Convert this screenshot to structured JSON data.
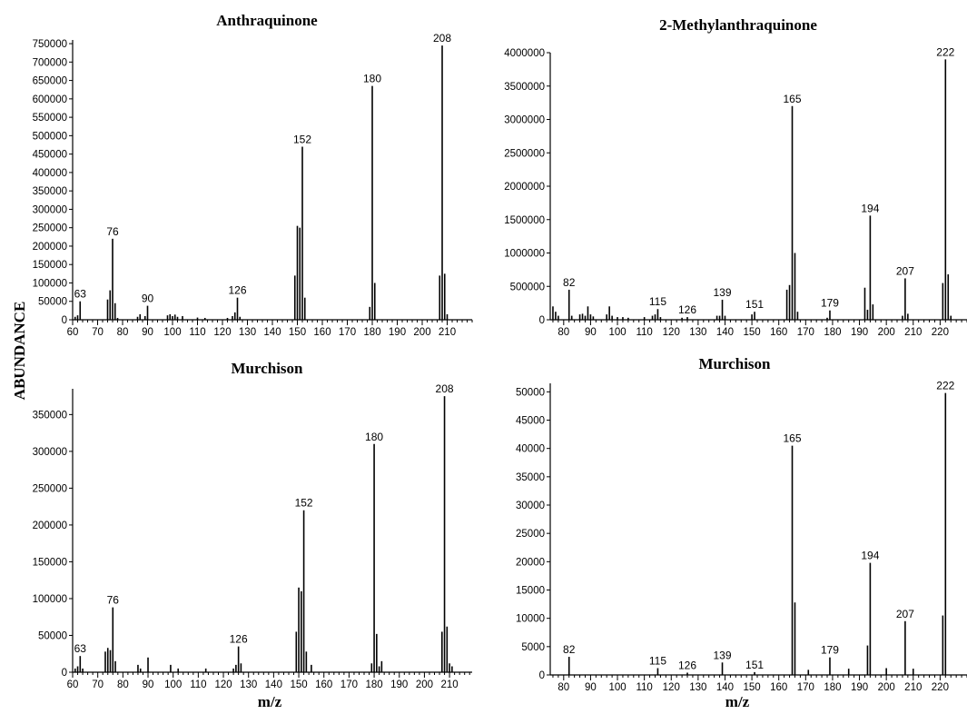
{
  "figure": {
    "ylabel": "ABUNDANCE",
    "xlabel": "m/z"
  },
  "chart_data": [
    {
      "type": "bar",
      "title": "Anthraquinone",
      "xlabel": "",
      "ylabel": "",
      "xlim": [
        60,
        220
      ],
      "ylim": [
        0,
        760000
      ],
      "xticks": [
        60,
        70,
        80,
        90,
        100,
        110,
        120,
        130,
        140,
        150,
        160,
        170,
        180,
        190,
        200,
        210
      ],
      "yticks": [
        0,
        50000,
        100000,
        150000,
        200000,
        250000,
        300000,
        350000,
        400000,
        450000,
        500000,
        550000,
        600000,
        650000,
        700000,
        750000
      ],
      "peaks": [
        {
          "mz": 61,
          "value": 8000
        },
        {
          "mz": 62,
          "value": 12000
        },
        {
          "mz": 63,
          "value": 50000,
          "label": "63"
        },
        {
          "mz": 74,
          "value": 55000
        },
        {
          "mz": 75,
          "value": 80000
        },
        {
          "mz": 76,
          "value": 220000,
          "label": "76"
        },
        {
          "mz": 77,
          "value": 45000
        },
        {
          "mz": 78,
          "value": 5000
        },
        {
          "mz": 86,
          "value": 8000
        },
        {
          "mz": 87,
          "value": 15000
        },
        {
          "mz": 89,
          "value": 10000
        },
        {
          "mz": 90,
          "value": 38000,
          "label": "90"
        },
        {
          "mz": 98,
          "value": 12000
        },
        {
          "mz": 99,
          "value": 15000
        },
        {
          "mz": 100,
          "value": 10000
        },
        {
          "mz": 101,
          "value": 14000
        },
        {
          "mz": 102,
          "value": 8000
        },
        {
          "mz": 104,
          "value": 10000
        },
        {
          "mz": 110,
          "value": 6000
        },
        {
          "mz": 113,
          "value": 5000
        },
        {
          "mz": 122,
          "value": 5000
        },
        {
          "mz": 124,
          "value": 10000
        },
        {
          "mz": 125,
          "value": 20000
        },
        {
          "mz": 126,
          "value": 60000,
          "label": "126"
        },
        {
          "mz": 127,
          "value": 8000
        },
        {
          "mz": 149,
          "value": 120000
        },
        {
          "mz": 150,
          "value": 255000
        },
        {
          "mz": 151,
          "value": 250000
        },
        {
          "mz": 152,
          "value": 470000,
          "label": "152"
        },
        {
          "mz": 153,
          "value": 60000
        },
        {
          "mz": 179,
          "value": 35000
        },
        {
          "mz": 180,
          "value": 635000,
          "label": "180"
        },
        {
          "mz": 181,
          "value": 100000
        },
        {
          "mz": 207,
          "value": 120000
        },
        {
          "mz": 208,
          "value": 745000,
          "label": "208"
        },
        {
          "mz": 209,
          "value": 125000
        },
        {
          "mz": 210,
          "value": 15000
        }
      ]
    },
    {
      "type": "bar",
      "title": "2-Methylanthraquinone",
      "xlabel": "",
      "ylabel": "",
      "xlim": [
        75,
        230
      ],
      "ylim": [
        0,
        4000000
      ],
      "xticks": [
        80,
        90,
        100,
        110,
        120,
        130,
        140,
        150,
        160,
        170,
        180,
        190,
        200,
        210,
        220
      ],
      "yticks": [
        0,
        500000,
        1000000,
        1500000,
        2000000,
        2500000,
        3000000,
        3500000,
        4000000
      ],
      "peaks": [
        {
          "mz": 76,
          "value": 200000
        },
        {
          "mz": 77,
          "value": 120000
        },
        {
          "mz": 78,
          "value": 60000
        },
        {
          "mz": 82,
          "value": 450000,
          "label": "82"
        },
        {
          "mz": 83,
          "value": 60000
        },
        {
          "mz": 86,
          "value": 80000
        },
        {
          "mz": 87,
          "value": 90000
        },
        {
          "mz": 88,
          "value": 60000
        },
        {
          "mz": 89,
          "value": 200000
        },
        {
          "mz": 90,
          "value": 80000
        },
        {
          "mz": 91,
          "value": 50000
        },
        {
          "mz": 96,
          "value": 80000
        },
        {
          "mz": 97,
          "value": 200000
        },
        {
          "mz": 98,
          "value": 60000
        },
        {
          "mz": 100,
          "value": 40000
        },
        {
          "mz": 102,
          "value": 40000
        },
        {
          "mz": 104,
          "value": 30000
        },
        {
          "mz": 110,
          "value": 40000
        },
        {
          "mz": 113,
          "value": 60000
        },
        {
          "mz": 114,
          "value": 80000
        },
        {
          "mz": 115,
          "value": 160000,
          "label": "115"
        },
        {
          "mz": 116,
          "value": 40000
        },
        {
          "mz": 124,
          "value": 30000
        },
        {
          "mz": 126,
          "value": 40000,
          "label": "126"
        },
        {
          "mz": 137,
          "value": 60000
        },
        {
          "mz": 138,
          "value": 60000
        },
        {
          "mz": 139,
          "value": 300000,
          "label": "139"
        },
        {
          "mz": 140,
          "value": 60000
        },
        {
          "mz": 150,
          "value": 80000
        },
        {
          "mz": 151,
          "value": 120000,
          "label": "151"
        },
        {
          "mz": 163,
          "value": 450000
        },
        {
          "mz": 164,
          "value": 520000
        },
        {
          "mz": 165,
          "value": 3200000,
          "label": "165"
        },
        {
          "mz": 166,
          "value": 1000000
        },
        {
          "mz": 167,
          "value": 120000
        },
        {
          "mz": 178,
          "value": 30000
        },
        {
          "mz": 179,
          "value": 140000,
          "label": "179"
        },
        {
          "mz": 192,
          "value": 480000
        },
        {
          "mz": 193,
          "value": 150000
        },
        {
          "mz": 194,
          "value": 1560000,
          "label": "194"
        },
        {
          "mz": 195,
          "value": 230000
        },
        {
          "mz": 206,
          "value": 60000
        },
        {
          "mz": 207,
          "value": 620000,
          "label": "207"
        },
        {
          "mz": 208,
          "value": 90000
        },
        {
          "mz": 221,
          "value": 550000
        },
        {
          "mz": 222,
          "value": 3900000,
          "label": "222"
        },
        {
          "mz": 223,
          "value": 680000
        },
        {
          "mz": 224,
          "value": 60000
        }
      ]
    },
    {
      "type": "bar",
      "title": "Murchison",
      "xlabel": "",
      "ylabel": "",
      "xlim": [
        60,
        219
      ],
      "ylim": [
        0,
        385000
      ],
      "xticks": [
        60,
        70,
        80,
        90,
        100,
        110,
        120,
        130,
        140,
        150,
        160,
        170,
        180,
        190,
        200,
        210
      ],
      "yticks": [
        0,
        50000,
        100000,
        150000,
        200000,
        250000,
        300000,
        350000
      ],
      "peaks": [
        {
          "mz": 61,
          "value": 5000
        },
        {
          "mz": 62,
          "value": 8000
        },
        {
          "mz": 63,
          "value": 22000,
          "label": "63"
        },
        {
          "mz": 64,
          "value": 5000
        },
        {
          "mz": 73,
          "value": 28000
        },
        {
          "mz": 74,
          "value": 33000
        },
        {
          "mz": 75,
          "value": 30000
        },
        {
          "mz": 76,
          "value": 88000,
          "label": "76"
        },
        {
          "mz": 77,
          "value": 15000
        },
        {
          "mz": 86,
          "value": 10000
        },
        {
          "mz": 87,
          "value": 5000
        },
        {
          "mz": 90,
          "value": 20000
        },
        {
          "mz": 99,
          "value": 10000
        },
        {
          "mz": 102,
          "value": 5000
        },
        {
          "mz": 113,
          "value": 5000
        },
        {
          "mz": 124,
          "value": 5000
        },
        {
          "mz": 125,
          "value": 10000
        },
        {
          "mz": 126,
          "value": 35000,
          "label": "126"
        },
        {
          "mz": 127,
          "value": 12000
        },
        {
          "mz": 149,
          "value": 55000
        },
        {
          "mz": 150,
          "value": 115000
        },
        {
          "mz": 151,
          "value": 110000
        },
        {
          "mz": 152,
          "value": 220000,
          "label": "152"
        },
        {
          "mz": 153,
          "value": 28000
        },
        {
          "mz": 155,
          "value": 10000
        },
        {
          "mz": 179,
          "value": 12000
        },
        {
          "mz": 180,
          "value": 310000,
          "label": "180"
        },
        {
          "mz": 181,
          "value": 52000
        },
        {
          "mz": 182,
          "value": 8000
        },
        {
          "mz": 183,
          "value": 15000
        },
        {
          "mz": 207,
          "value": 55000
        },
        {
          "mz": 208,
          "value": 375000,
          "label": "208"
        },
        {
          "mz": 209,
          "value": 62000
        },
        {
          "mz": 210,
          "value": 12000
        },
        {
          "mz": 211,
          "value": 8000
        }
      ]
    },
    {
      "type": "bar",
      "title": "Murchison",
      "xlabel": "",
      "ylabel": "",
      "xlim": [
        75,
        230
      ],
      "ylim": [
        0,
        51500
      ],
      "xticks": [
        80,
        90,
        100,
        110,
        120,
        130,
        140,
        150,
        160,
        170,
        180,
        190,
        200,
        210,
        220
      ],
      "yticks": [
        0,
        5000,
        10000,
        15000,
        20000,
        25000,
        30000,
        35000,
        40000,
        45000,
        50000
      ],
      "peaks": [
        {
          "mz": 82,
          "value": 3200,
          "label": "82"
        },
        {
          "mz": 115,
          "value": 1200,
          "label": "115"
        },
        {
          "mz": 126,
          "value": 400,
          "label": "126"
        },
        {
          "mz": 139,
          "value": 2200,
          "label": "139"
        },
        {
          "mz": 151,
          "value": 500,
          "label": "151"
        },
        {
          "mz": 165,
          "value": 40500,
          "label": "165"
        },
        {
          "mz": 166,
          "value": 12800
        },
        {
          "mz": 171,
          "value": 900
        },
        {
          "mz": 179,
          "value": 3100,
          "label": "179"
        },
        {
          "mz": 186,
          "value": 1100
        },
        {
          "mz": 193,
          "value": 5200
        },
        {
          "mz": 194,
          "value": 19800,
          "label": "194"
        },
        {
          "mz": 200,
          "value": 1200
        },
        {
          "mz": 207,
          "value": 9500,
          "label": "207"
        },
        {
          "mz": 210,
          "value": 1100
        },
        {
          "mz": 221,
          "value": 10500
        },
        {
          "mz": 222,
          "value": 49800,
          "label": "222"
        }
      ]
    }
  ]
}
